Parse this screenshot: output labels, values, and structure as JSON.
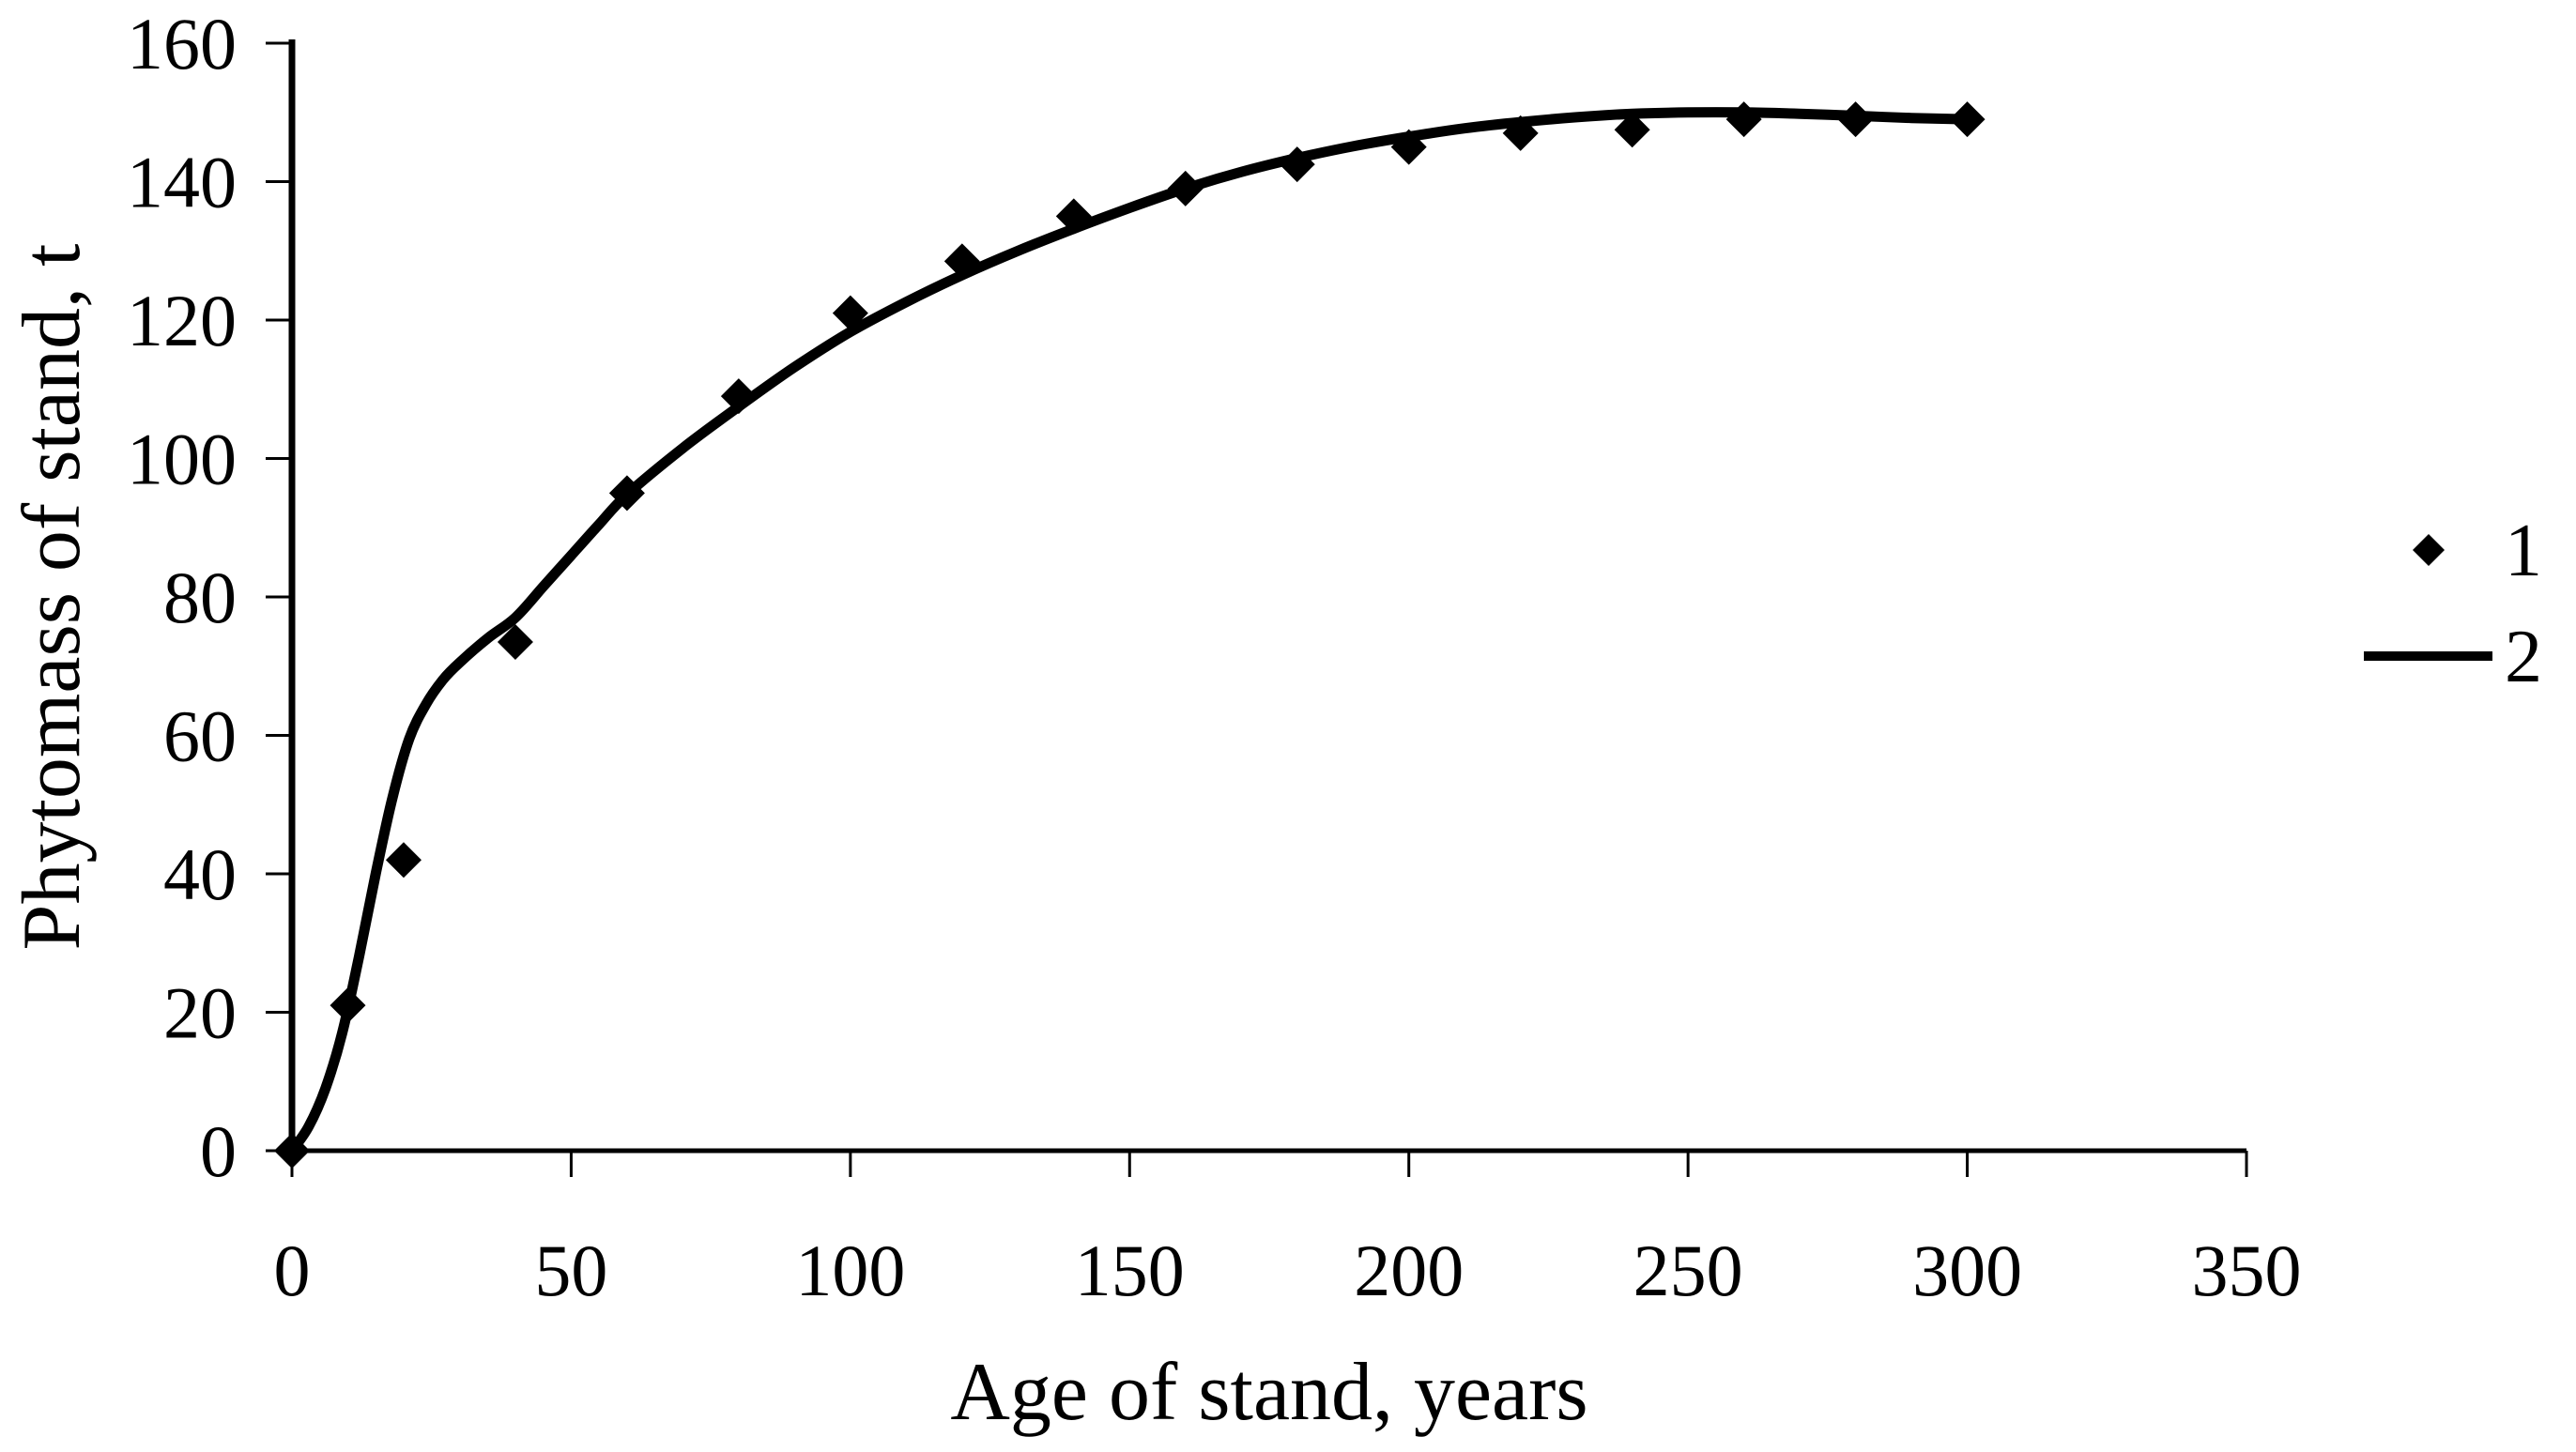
{
  "colors": {
    "foreground": "#000000",
    "background": "#ffffff"
  },
  "chart_data": {
    "type": "scatter",
    "title": "",
    "xlabel": "Age of stand, years",
    "ylabel": "Phytomass of stand, t",
    "xlim": [
      0,
      350
    ],
    "ylim": [
      0,
      160
    ],
    "xticks": [
      0,
      50,
      100,
      150,
      200,
      250,
      300,
      350
    ],
    "yticks": [
      0,
      20,
      40,
      60,
      80,
      100,
      120,
      140,
      160
    ],
    "grid": false,
    "legend": {
      "position": "right",
      "items": [
        {
          "label": "1",
          "marker": "diamond"
        },
        {
          "label": "2",
          "marker": "line"
        }
      ]
    },
    "series": [
      {
        "name": "1",
        "kind": "scatter",
        "marker": "diamond",
        "color": "#000000",
        "x": [
          0,
          10,
          20,
          40,
          60,
          80,
          100,
          120,
          140,
          160,
          180,
          200,
          220,
          240,
          260,
          280,
          300
        ],
        "y": [
          0,
          21,
          42,
          73.5,
          95,
          109,
          121,
          128.5,
          135,
          139,
          142.5,
          145,
          147,
          147.5,
          149,
          149,
          149
        ]
      },
      {
        "name": "2",
        "kind": "line",
        "color": "#000000",
        "x": [
          0,
          3,
          6,
          9,
          12,
          15,
          18,
          21,
          24,
          27,
          30,
          35,
          40,
          45,
          50,
          55,
          60,
          70,
          80,
          90,
          100,
          110,
          120,
          130,
          140,
          150,
          160,
          170,
          180,
          190,
          200,
          210,
          220,
          230,
          240,
          250,
          260,
          270,
          280,
          290,
          300
        ],
        "y": [
          0,
          3.5,
          9,
          17,
          28,
          40,
          51,
          59.5,
          64.5,
          68,
          70.5,
          74,
          77,
          81.5,
          86,
          90.5,
          94.8,
          101.5,
          107.5,
          113.2,
          118.3,
          122.6,
          126.5,
          130,
          133.2,
          136.2,
          139,
          141.4,
          143.4,
          145.1,
          146.5,
          147.7,
          148.6,
          149.3,
          149.8,
          150,
          150,
          149.8,
          149.5,
          149.2,
          149
        ]
      }
    ]
  }
}
